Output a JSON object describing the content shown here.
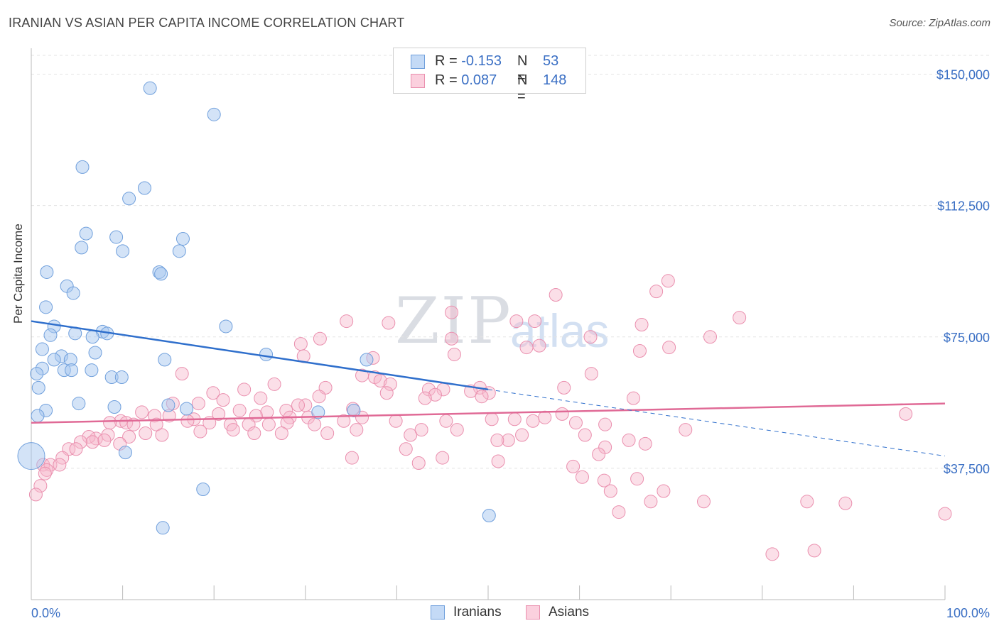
{
  "header": {
    "title": "IRANIAN VS ASIAN PER CAPITA INCOME CORRELATION CHART",
    "source": "Source: ZipAtlas.com"
  },
  "watermark": {
    "zip": "ZIP",
    "atlas": "atlas"
  },
  "legend": {
    "rows": [
      {
        "r_label": "R =",
        "r_value": "-0.153",
        "n_label": "N =",
        "n_value": "53"
      },
      {
        "r_label": "R =",
        "r_value": "0.087",
        "n_label": "N =",
        "n_value": "148"
      }
    ],
    "bottom": [
      "Iranians",
      "Asians"
    ]
  },
  "colors": {
    "iranians_fill": "#a8c8f0",
    "iranians_stroke": "#6f9fdc",
    "iranians_line": "#2f6fcc",
    "asians_fill": "#f6b8cc",
    "asians_stroke": "#ea8fae",
    "asians_line": "#e06a96",
    "tick_label": "#3a6fc4",
    "grid": "#e3e3e3"
  },
  "chart_data": {
    "type": "scatter",
    "title": "IRANIAN VS ASIAN PER CAPITA INCOME CORRELATION CHART",
    "xlabel": "",
    "ylabel": "Per Capita Income",
    "xlim": [
      0,
      100
    ],
    "ylim": [
      0,
      157000
    ],
    "x_tick_labels": [
      "0.0%",
      "100.0%"
    ],
    "y_ticks": [
      37500,
      75000,
      112500,
      150000
    ],
    "y_tick_labels": [
      "$37,500",
      "$75,000",
      "$112,500",
      "$150,000"
    ],
    "grid": true,
    "legend_position": "top-center",
    "series": [
      {
        "name": "Iranians",
        "R": -0.153,
        "N": 53,
        "trend": {
          "x0": 0,
          "y0": 79500,
          "x1": 50,
          "y1": 60000,
          "dashed_to_x": 100,
          "dashed_to_y": 41000
        },
        "points": [
          [
            13,
            146000
          ],
          [
            20,
            138500
          ],
          [
            5.6,
            123500
          ],
          [
            12.4,
            117500
          ],
          [
            10.7,
            114500
          ],
          [
            6,
            104500
          ],
          [
            9.3,
            103500
          ],
          [
            16.6,
            103000
          ],
          [
            5.5,
            100500
          ],
          [
            10,
            99500
          ],
          [
            16.2,
            99500
          ],
          [
            1.7,
            93500
          ],
          [
            14,
            93500
          ],
          [
            14.2,
            93000
          ],
          [
            3.9,
            89500
          ],
          [
            4.6,
            87500
          ],
          [
            1.6,
            83500
          ],
          [
            21.3,
            78000
          ],
          [
            2.5,
            78000
          ],
          [
            2.1,
            75500
          ],
          [
            4.8,
            76000
          ],
          [
            7.8,
            76500
          ],
          [
            8.3,
            76000
          ],
          [
            6.7,
            75000
          ],
          [
            1.2,
            71500
          ],
          [
            7,
            70500
          ],
          [
            25.7,
            70000
          ],
          [
            3.3,
            69500
          ],
          [
            2.5,
            68500
          ],
          [
            4.3,
            68500
          ],
          [
            14.6,
            68500
          ],
          [
            36.7,
            68500
          ],
          [
            1.2,
            66000
          ],
          [
            3.6,
            65500
          ],
          [
            4.4,
            65500
          ],
          [
            6.6,
            65500
          ],
          [
            0.6,
            64500
          ],
          [
            8.8,
            63500
          ],
          [
            9.9,
            63500
          ],
          [
            0.8,
            60500
          ],
          [
            5.2,
            56000
          ],
          [
            15,
            55500
          ],
          [
            9.1,
            55000
          ],
          [
            17,
            54500
          ],
          [
            1.6,
            54000
          ],
          [
            31.4,
            53500
          ],
          [
            35.3,
            54000
          ],
          [
            0.7,
            52500
          ],
          [
            10.3,
            42000
          ],
          [
            18.8,
            31500
          ],
          [
            50.1,
            24000
          ],
          [
            14.4,
            20500
          ],
          [
            0,
            41000
          ]
        ]
      },
      {
        "name": "Asians",
        "R": 0.087,
        "N": 148,
        "trend": {
          "x0": 0,
          "y0": 50500,
          "x1": 100,
          "y1": 56000
        },
        "points": [
          [
            69.7,
            91000
          ],
          [
            68.4,
            88000
          ],
          [
            57.4,
            87000
          ],
          [
            77.5,
            80500
          ],
          [
            46,
            82000
          ],
          [
            34.5,
            79500
          ],
          [
            39.1,
            79000
          ],
          [
            53.1,
            79500
          ],
          [
            55.1,
            79500
          ],
          [
            66.8,
            78500
          ],
          [
            61.2,
            75000
          ],
          [
            74.3,
            75000
          ],
          [
            31.6,
            74500
          ],
          [
            46,
            74500
          ],
          [
            29.5,
            73000
          ],
          [
            54.2,
            72000
          ],
          [
            55.6,
            72500
          ],
          [
            69.8,
            72000
          ],
          [
            37.4,
            69000
          ],
          [
            46.3,
            70000
          ],
          [
            29.8,
            69500
          ],
          [
            66.6,
            71000
          ],
          [
            16.5,
            64500
          ],
          [
            36.2,
            64000
          ],
          [
            37.6,
            63500
          ],
          [
            61.3,
            64500
          ],
          [
            38.2,
            62500
          ],
          [
            39.3,
            61500
          ],
          [
            26.6,
            61500
          ],
          [
            32.2,
            60500
          ],
          [
            49.1,
            60500
          ],
          [
            58.3,
            60500
          ],
          [
            23.3,
            60000
          ],
          [
            43.5,
            60000
          ],
          [
            45.1,
            60000
          ],
          [
            38.9,
            59000
          ],
          [
            48.1,
            59500
          ],
          [
            50.1,
            59000
          ],
          [
            31.5,
            58000
          ],
          [
            44.2,
            58500
          ],
          [
            49.3,
            58000
          ],
          [
            19.9,
            59000
          ],
          [
            21,
            57000
          ],
          [
            25.1,
            57500
          ],
          [
            43.1,
            57500
          ],
          [
            65.9,
            57500
          ],
          [
            18.3,
            56000
          ],
          [
            30,
            55500
          ],
          [
            35.2,
            54500
          ],
          [
            29.2,
            55500
          ],
          [
            15.5,
            56000
          ],
          [
            22.8,
            54000
          ],
          [
            25.8,
            53500
          ],
          [
            27.9,
            54000
          ],
          [
            12.1,
            53500
          ],
          [
            13.5,
            52500
          ],
          [
            15.1,
            52500
          ],
          [
            17.8,
            51500
          ],
          [
            20.5,
            53000
          ],
          [
            24.6,
            52500
          ],
          [
            30.3,
            52000
          ],
          [
            28.3,
            52000
          ],
          [
            36.2,
            52000
          ],
          [
            39.9,
            51000
          ],
          [
            45.4,
            51000
          ],
          [
            50.4,
            51500
          ],
          [
            52.9,
            51500
          ],
          [
            54.9,
            51000
          ],
          [
            58.1,
            53000
          ],
          [
            56.2,
            52000
          ],
          [
            9.8,
            51000
          ],
          [
            10.4,
            50500
          ],
          [
            8.6,
            50500
          ],
          [
            11.2,
            50000
          ],
          [
            13.7,
            50000
          ],
          [
            17.1,
            51000
          ],
          [
            19.5,
            50500
          ],
          [
            21.8,
            50000
          ],
          [
            23.8,
            50000
          ],
          [
            26,
            50000
          ],
          [
            28,
            50500
          ],
          [
            31,
            50000
          ],
          [
            34.2,
            51000
          ],
          [
            59.6,
            50500
          ],
          [
            62.8,
            50000
          ],
          [
            12.5,
            47500
          ],
          [
            14.3,
            47000
          ],
          [
            18.5,
            48000
          ],
          [
            22.1,
            48500
          ],
          [
            24.4,
            47500
          ],
          [
            27.4,
            47500
          ],
          [
            32.4,
            47500
          ],
          [
            35.6,
            48500
          ],
          [
            41.5,
            47000
          ],
          [
            42.7,
            48500
          ],
          [
            46.6,
            48500
          ],
          [
            53.7,
            47000
          ],
          [
            60.6,
            47000
          ],
          [
            71.6,
            48500
          ],
          [
            10.7,
            46500
          ],
          [
            8.4,
            47000
          ],
          [
            7.1,
            46000
          ],
          [
            6.3,
            46500
          ],
          [
            6.7,
            45000
          ],
          [
            8,
            45500
          ],
          [
            5.4,
            45000
          ],
          [
            4.1,
            43000
          ],
          [
            4.9,
            43000
          ],
          [
            9.7,
            44500
          ],
          [
            62.8,
            43500
          ],
          [
            67.2,
            44500
          ],
          [
            52.2,
            45500
          ],
          [
            51,
            45500
          ],
          [
            65.4,
            45500
          ],
          [
            41,
            43000
          ],
          [
            3.4,
            40500
          ],
          [
            1.3,
            38500
          ],
          [
            2.1,
            38500
          ],
          [
            3.1,
            38500
          ],
          [
            1.7,
            37000
          ],
          [
            1.5,
            36000
          ],
          [
            35.1,
            40500
          ],
          [
            45,
            40500
          ],
          [
            42.4,
            39000
          ],
          [
            51.1,
            39500
          ],
          [
            59.3,
            38000
          ],
          [
            62.1,
            41500
          ],
          [
            1,
            32500
          ],
          [
            0.5,
            30000
          ],
          [
            60.3,
            35000
          ],
          [
            66.3,
            34500
          ],
          [
            62.7,
            34000
          ],
          [
            63.4,
            31000
          ],
          [
            69.2,
            31000
          ],
          [
            73.6,
            28000
          ],
          [
            67.8,
            28000
          ],
          [
            84.9,
            28000
          ],
          [
            95.7,
            53000
          ],
          [
            89.1,
            27500
          ],
          [
            64.3,
            25000
          ],
          [
            100,
            24500
          ],
          [
            81.1,
            13000
          ],
          [
            85.7,
            14000
          ]
        ]
      }
    ]
  }
}
